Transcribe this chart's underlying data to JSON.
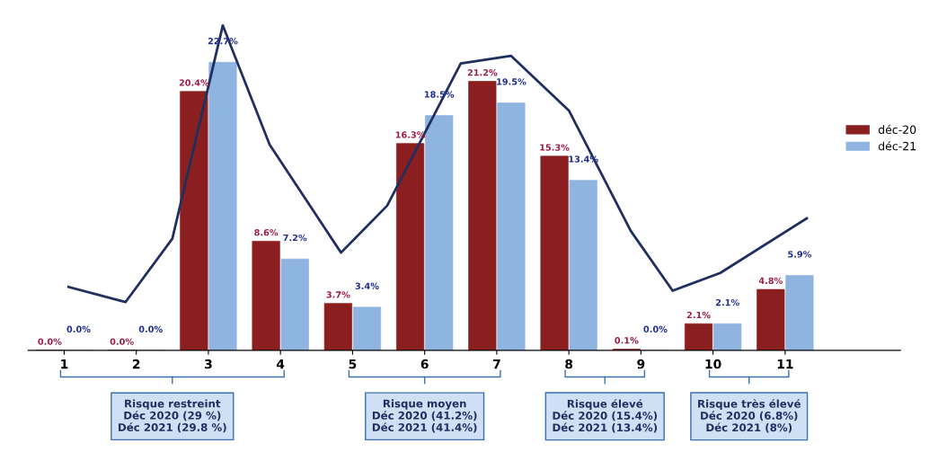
{
  "chart_data": {
    "type": "bar",
    "x": [
      1,
      2,
      3,
      4,
      5,
      6,
      7,
      8,
      9,
      10,
      11
    ],
    "xlim": [
      0.5,
      12.6
    ],
    "xticks": [
      1,
      2,
      3,
      4,
      5,
      6,
      7,
      8,
      9,
      10,
      11
    ],
    "tick_labels": "x",
    "series": [
      {
        "name": "déc-20",
        "color": "#8b1f1f",
        "values": [
          0.0,
          0.0,
          20.4,
          8.6,
          3.7,
          16.3,
          21.2,
          15.3,
          0.1,
          2.1,
          4.8
        ],
        "value_labels": [
          "0.0%",
          "0.0%",
          "20.4%",
          "8.6%",
          "3.7%",
          "16.3%",
          "21.2%",
          "15.3%",
          "0.1%",
          "2.1%",
          "4.8%"
        ]
      },
      {
        "name": "déc-21",
        "color": "#8fb4e0",
        "values": [
          0.0,
          0.0,
          22.7,
          7.2,
          3.4,
          18.5,
          19.5,
          13.4,
          0.0,
          2.1,
          5.9
        ],
        "value_labels": [
          "0.0%",
          "0.0%",
          "22.7%",
          "7.2%",
          "3.4%",
          "18.5%",
          "19.5%",
          "13.4%",
          "0.0%",
          "2.1%",
          "5.9%"
        ]
      },
      {
        "type": "line",
        "color": "#1f2f5f",
        "x": [
          1.06,
          1.85,
          2.5,
          3.2,
          3.85,
          4.84,
          5.48,
          6.5,
          7.2,
          8.0,
          8.86,
          9.44,
          10.1,
          11.3
        ],
        "values": [
          5.0,
          3.8,
          8.8,
          25.6,
          16.2,
          7.7,
          11.4,
          22.6,
          23.2,
          18.9,
          9.4,
          4.7,
          6.1,
          10.4
        ]
      }
    ],
    "legend": "right",
    "annotations": [
      "Risque restreint\nDéc 2020 (29 %)\nDéc 2021 (29.8 %)",
      "Risque moyen\nDéc 2020 (41.2%)\nDéc 2021 (41.4%)",
      "Risque élevé\nDéc 2020 (15.4%)\nDéc 2021 (13.4%)",
      "Risque très élevé\nDéc 2020 (6.8%)\nDéc 2021 (8%)"
    ]
  }
}
